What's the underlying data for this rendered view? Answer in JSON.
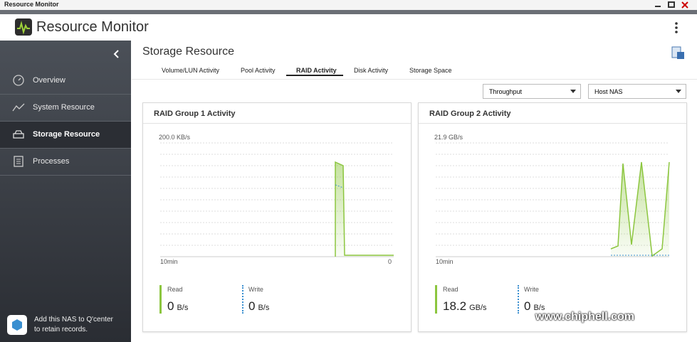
{
  "window": {
    "title": "Resource Monitor"
  },
  "header": {
    "title": "Resource Monitor"
  },
  "sidebar": {
    "items": [
      "Overview",
      "System Resource",
      "Storage Resource",
      "Processes"
    ],
    "footer": [
      "Add this NAS to Q'center",
      "to retain records."
    ]
  },
  "main": {
    "title": "Storage Resource",
    "tabs": [
      "Volume/LUN Activity",
      "Pool Activity",
      "RAID Activity",
      "Disk Activity",
      "Storage Space"
    ],
    "dropdowns": [
      "Throughput",
      "Host NAS"
    ],
    "cards": [
      {
        "title": "RAID Group 1 Activity",
        "axis_max": "200.0 KB/s",
        "x_start": "10min",
        "x_end": "0",
        "read": {
          "label": "Read",
          "value": "0",
          "unit": "B/s"
        },
        "write": {
          "label": "Write",
          "value": "0",
          "unit": "B/s"
        }
      },
      {
        "title": "RAID Group 2 Activity",
        "axis_max": "21.9 GB/s",
        "x_start": "10min",
        "read": {
          "label": "Read",
          "value": "18.2",
          "unit": "GB/s"
        },
        "write": {
          "label": "Write",
          "value": "0",
          "unit": "B/s"
        }
      }
    ]
  },
  "watermark": "www.chiphell.com"
}
